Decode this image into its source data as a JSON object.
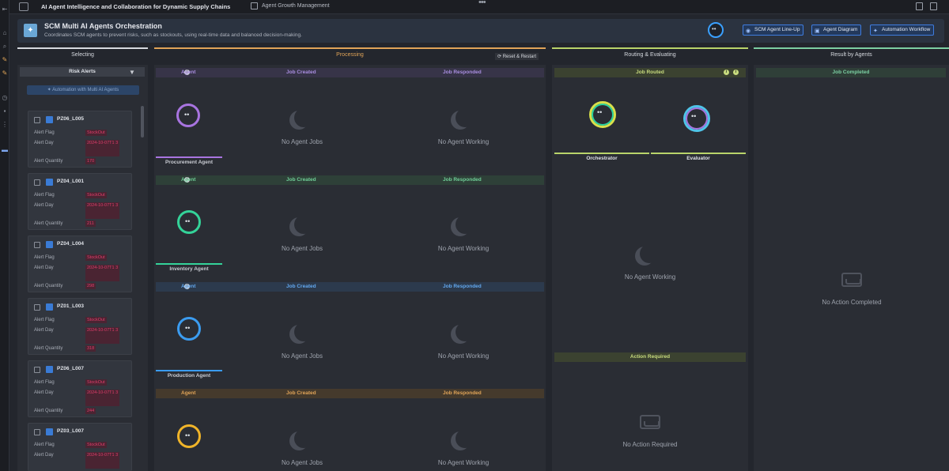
{
  "topbar": {
    "title": "AI Agent Intelligence and Collaboration for Dynamic Supply Chains",
    "link": "Agent Growth Management",
    "dots": "•••"
  },
  "header": {
    "title": "SCM Multi AI Agents Orchestration",
    "subtitle": "Coordinates SCM agents to prevent risks, such as stockouts, using real-time data and balanced decision-making.",
    "buttons": [
      "SCM Agent Line-Up",
      "Agent Diagram",
      "Automation Workflow"
    ]
  },
  "columns": {
    "selecting": "Selecting",
    "processing": "Processing",
    "reset": "Reset & Restart",
    "routing": "Routing & Evaluating",
    "result": "Result by Agents"
  },
  "selecting": {
    "risk_alerts": "Risk Alerts",
    "automation_btn": "Automation with Multi AI Agents",
    "labels": {
      "flag": "Alert Flag",
      "day": "Alert Day",
      "qty": "Alert Quantity"
    },
    "cards": [
      {
        "id": "PZ06_L005",
        "flag": "StockOut",
        "day": "2024-10-07T1 3",
        "qty": "170"
      },
      {
        "id": "PZ04_L001",
        "flag": "StockOut",
        "day": "2024-10-07T1 3",
        "qty": "211"
      },
      {
        "id": "PZ04_L004",
        "flag": "StockOut",
        "day": "2024-10-07T1 3",
        "qty": "298"
      },
      {
        "id": "PZ01_L003",
        "flag": "StockOut",
        "day": "2024-10-07T1 3",
        "qty": "318"
      },
      {
        "id": "PZ06_L007",
        "flag": "StockOut",
        "day": "2024-10-07T1 3",
        "qty": "244"
      },
      {
        "id": "PZ03_L007",
        "flag": "StockOut",
        "day": "2024-10-07T1 3",
        "qty": ""
      }
    ]
  },
  "processing": {
    "col_agent": "Agent",
    "col_created": "Job Created",
    "col_responded": "Job Responded",
    "empty_created": "No Agent Jobs",
    "empty_responded": "No Agent Working",
    "agents": [
      {
        "name": "Procurement Agent",
        "color": "#a874e0"
      },
      {
        "name": "Inventory Agent",
        "color": "#34d399"
      },
      {
        "name": "Production Agent",
        "color": "#3b9cf0"
      },
      {
        "name": "",
        "color": "#f0b429"
      }
    ]
  },
  "routing": {
    "job_routed": "Job Routed",
    "orchestrator": "Orchestrator",
    "evaluator": "Evaluator",
    "empty_working": "No Agent Working",
    "action_required": "Action Required",
    "empty_action": "No Action Required"
  },
  "result": {
    "job_completed": "Job Completed",
    "empty": "No Action Completed"
  },
  "colors": {
    "selecting": "#d6d9df",
    "processing": "#e0a458",
    "routing": "#b9d46a",
    "result": "#7ccfa2"
  }
}
